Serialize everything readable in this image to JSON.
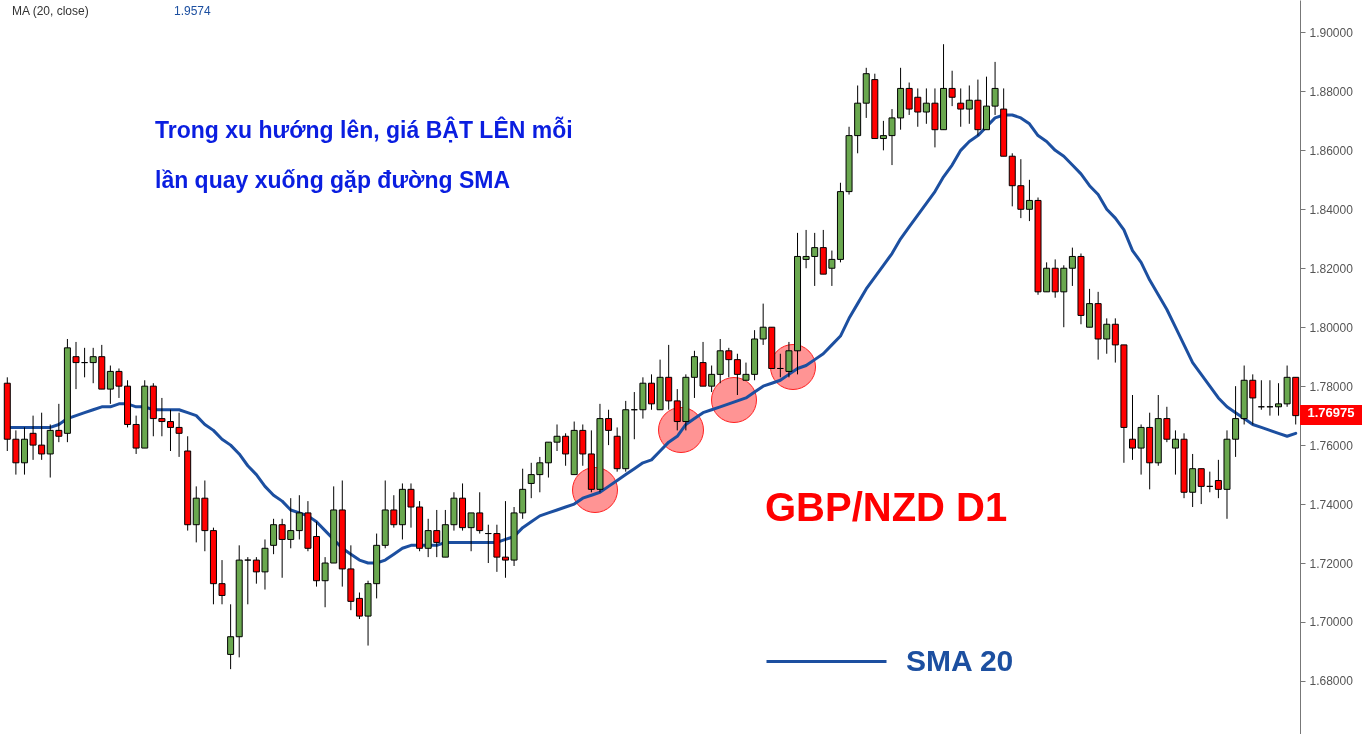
{
  "chart_data": {
    "type": "candlestick",
    "title": "Trong xu hướng lên, giá BẬT LÊN mỗi lần quay xuống gặp đường SMA",
    "annotations": [
      "MA (20, close)",
      "1.9574",
      "GBP/NZD D1",
      "1.76975"
    ],
    "categories": [
      null,
      null,
      null,
      null,
      null,
      null,
      null,
      null,
      null,
      null,
      null,
      null,
      null,
      null,
      null,
      null,
      null,
      null,
      null,
      null,
      null,
      null,
      null,
      null,
      null,
      null,
      null,
      null,
      null,
      null,
      null,
      null,
      null,
      null,
      null,
      null,
      null,
      null,
      null,
      null,
      null,
      null,
      null,
      null,
      null,
      null,
      null,
      null,
      null,
      null,
      null,
      null,
      null,
      null,
      null,
      null,
      null,
      null,
      null,
      null,
      null,
      null,
      null,
      null,
      null,
      null,
      null,
      null,
      null,
      null,
      null,
      null,
      null,
      null,
      null,
      null,
      null,
      null,
      null,
      null,
      null,
      null,
      null,
      null,
      null,
      null,
      null,
      null,
      null,
      null,
      null,
      null,
      null,
      null,
      null,
      null,
      null,
      null,
      null,
      null,
      null,
      null,
      null,
      null,
      null,
      null,
      null,
      null,
      null,
      null,
      null,
      null,
      null,
      null,
      null,
      null,
      null,
      null,
      null,
      null,
      null,
      null,
      null,
      null,
      null,
      null,
      null,
      null,
      null,
      null,
      null,
      null,
      null,
      null,
      null,
      null,
      null,
      null,
      null,
      null,
      null,
      null,
      null,
      null,
      null,
      null,
      null,
      null,
      null,
      null,
      null
    ],
    "ohlc": [
      [
        1.781,
        1.783,
        1.758,
        1.762
      ],
      [
        1.762,
        1.765,
        1.75,
        1.754
      ],
      [
        1.754,
        1.766,
        1.75,
        1.762
      ],
      [
        1.764,
        1.77,
        1.755,
        1.76
      ],
      [
        1.76,
        1.771,
        1.755,
        1.757
      ],
      [
        1.757,
        1.767,
        1.749,
        1.765
      ],
      [
        1.765,
        1.774,
        1.761,
        1.763
      ],
      [
        1.764,
        1.796,
        1.761,
        1.793
      ],
      [
        1.79,
        1.795,
        1.779,
        1.788
      ],
      [
        1.788,
        1.793,
        1.783,
        1.788
      ],
      [
        1.788,
        1.793,
        1.781,
        1.79
      ],
      [
        1.79,
        1.794,
        1.779,
        1.779
      ],
      [
        1.779,
        1.787,
        1.774,
        1.785
      ],
      [
        1.785,
        1.786,
        1.776,
        1.78
      ],
      [
        1.78,
        1.782,
        1.766,
        1.767
      ],
      [
        1.767,
        1.77,
        1.757,
        1.759
      ],
      [
        1.759,
        1.782,
        1.759,
        1.78
      ],
      [
        1.78,
        1.781,
        1.763,
        1.769
      ],
      [
        1.769,
        1.776,
        1.763,
        1.768
      ],
      [
        1.768,
        1.772,
        1.758,
        1.766
      ],
      [
        1.766,
        1.771,
        1.756,
        1.764
      ],
      [
        1.758,
        1.763,
        1.731,
        1.733
      ],
      [
        1.733,
        1.746,
        1.727,
        1.742
      ],
      [
        1.742,
        1.748,
        1.724,
        1.731
      ],
      [
        1.731,
        1.732,
        1.706,
        1.713
      ],
      [
        1.713,
        1.721,
        1.706,
        1.709
      ],
      [
        1.689,
        1.706,
        1.684,
        1.695
      ],
      [
        1.695,
        1.726,
        1.688,
        1.721
      ],
      [
        1.721,
        1.722,
        1.706,
        1.721
      ],
      [
        1.721,
        1.722,
        1.713,
        1.717
      ],
      [
        1.717,
        1.728,
        1.711,
        1.725
      ],
      [
        1.726,
        1.735,
        1.723,
        1.733
      ],
      [
        1.733,
        1.735,
        1.715,
        1.728
      ],
      [
        1.728,
        1.742,
        1.725,
        1.731
      ],
      [
        1.731,
        1.743,
        1.728,
        1.737
      ],
      [
        1.737,
        1.741,
        1.724,
        1.725
      ],
      [
        1.729,
        1.734,
        1.712,
        1.714
      ],
      [
        1.714,
        1.722,
        1.705,
        1.72
      ],
      [
        1.72,
        1.746,
        1.72,
        1.738
      ],
      [
        1.738,
        1.748,
        1.712,
        1.718
      ],
      [
        1.718,
        1.726,
        1.704,
        1.707
      ],
      [
        1.708,
        1.71,
        1.701,
        1.702
      ],
      [
        1.702,
        1.714,
        1.692,
        1.713
      ],
      [
        1.713,
        1.73,
        1.708,
        1.726
      ],
      [
        1.726,
        1.748,
        1.725,
        1.738
      ],
      [
        1.738,
        1.743,
        1.732,
        1.733
      ],
      [
        1.733,
        1.747,
        1.728,
        1.745
      ],
      [
        1.745,
        1.747,
        1.732,
        1.739
      ],
      [
        1.739,
        1.741,
        1.724,
        1.725
      ],
      [
        1.725,
        1.735,
        1.722,
        1.731
      ],
      [
        1.731,
        1.738,
        1.722,
        1.727
      ],
      [
        1.722,
        1.738,
        1.722,
        1.733
      ],
      [
        1.733,
        1.744,
        1.731,
        1.742
      ],
      [
        1.742,
        1.747,
        1.731,
        1.732
      ],
      [
        1.732,
        1.737,
        1.724,
        1.737
      ],
      [
        1.737,
        1.744,
        1.73,
        1.731
      ],
      [
        1.73,
        1.733,
        1.72,
        1.73
      ],
      [
        1.73,
        1.733,
        1.717,
        1.722
      ],
      [
        1.722,
        1.741,
        1.715,
        1.721
      ],
      [
        1.721,
        1.739,
        1.719,
        1.737
      ],
      [
        1.737,
        1.752,
        1.735,
        1.745
      ],
      [
        1.747,
        1.754,
        1.742,
        1.75
      ],
      [
        1.75,
        1.756,
        1.744,
        1.754
      ],
      [
        1.754,
        1.761,
        1.749,
        1.761
      ],
      [
        1.761,
        1.767,
        1.758,
        1.763
      ],
      [
        1.763,
        1.764,
        1.753,
        1.757
      ],
      [
        1.75,
        1.768,
        1.75,
        1.765
      ],
      [
        1.765,
        1.767,
        1.753,
        1.757
      ],
      [
        1.757,
        1.765,
        1.744,
        1.745
      ],
      [
        1.745,
        1.774,
        1.744,
        1.769
      ],
      [
        1.769,
        1.772,
        1.76,
        1.765
      ],
      [
        1.763,
        1.766,
        1.751,
        1.752
      ],
      [
        1.752,
        1.775,
        1.751,
        1.772
      ],
      [
        1.772,
        1.778,
        1.762,
        1.772
      ],
      [
        1.772,
        1.783,
        1.769,
        1.781
      ],
      [
        1.781,
        1.784,
        1.772,
        1.774
      ],
      [
        1.772,
        1.789,
        1.772,
        1.783
      ],
      [
        1.783,
        1.794,
        1.772,
        1.775
      ],
      [
        1.775,
        1.779,
        1.765,
        1.768
      ],
      [
        1.768,
        1.784,
        1.765,
        1.783
      ],
      [
        1.783,
        1.792,
        1.776,
        1.79
      ],
      [
        1.788,
        1.795,
        1.78,
        1.78
      ],
      [
        1.78,
        1.787,
        1.778,
        1.784
      ],
      [
        1.784,
        1.796,
        1.781,
        1.792
      ],
      [
        1.792,
        1.793,
        1.783,
        1.789
      ],
      [
        1.789,
        1.791,
        1.777,
        1.784
      ],
      [
        1.782,
        1.788,
        1.782,
        1.784
      ],
      [
        1.784,
        1.799,
        1.782,
        1.796
      ],
      [
        1.796,
        1.808,
        1.794,
        1.8
      ],
      [
        1.8,
        1.8,
        1.786,
        1.786
      ],
      [
        1.786,
        1.791,
        1.783,
        1.786
      ],
      [
        1.785,
        1.795,
        1.783,
        1.792
      ],
      [
        1.792,
        1.832,
        1.784,
        1.824
      ],
      [
        1.823,
        1.833,
        1.82,
        1.824
      ],
      [
        1.824,
        1.832,
        1.814,
        1.827
      ],
      [
        1.827,
        1.833,
        1.818,
        1.818
      ],
      [
        1.82,
        1.826,
        1.814,
        1.823
      ],
      [
        1.823,
        1.849,
        1.822,
        1.846
      ],
      [
        1.846,
        1.868,
        1.845,
        1.865
      ],
      [
        1.865,
        1.882,
        1.859,
        1.876
      ],
      [
        1.876,
        1.888,
        1.871,
        1.886
      ],
      [
        1.884,
        1.886,
        1.864,
        1.864
      ],
      [
        1.864,
        1.87,
        1.86,
        1.865
      ],
      [
        1.865,
        1.874,
        1.855,
        1.871
      ],
      [
        1.871,
        1.888,
        1.867,
        1.881
      ],
      [
        1.881,
        1.883,
        1.872,
        1.874
      ],
      [
        1.878,
        1.881,
        1.868,
        1.873
      ],
      [
        1.873,
        1.881,
        1.869,
        1.876
      ],
      [
        1.876,
        1.881,
        1.861,
        1.867
      ],
      [
        1.867,
        1.896,
        1.867,
        1.881
      ],
      [
        1.881,
        1.887,
        1.875,
        1.878
      ],
      [
        1.876,
        1.881,
        1.868,
        1.874
      ],
      [
        1.874,
        1.882,
        1.869,
        1.877
      ],
      [
        1.877,
        1.884,
        1.865,
        1.867
      ],
      [
        1.867,
        1.885,
        1.867,
        1.875
      ],
      [
        1.875,
        1.89,
        1.872,
        1.881
      ],
      [
        1.874,
        1.881,
        1.858,
        1.858
      ],
      [
        1.858,
        1.859,
        1.841,
        1.848
      ],
      [
        1.848,
        1.857,
        1.837,
        1.84
      ],
      [
        1.84,
        1.85,
        1.836,
        1.843
      ],
      [
        1.843,
        1.844,
        1.811,
        1.812
      ],
      [
        1.812,
        1.822,
        1.812,
        1.82
      ],
      [
        1.82,
        1.823,
        1.81,
        1.812
      ],
      [
        1.812,
        1.821,
        1.8,
        1.82
      ],
      [
        1.82,
        1.827,
        1.814,
        1.824
      ],
      [
        1.824,
        1.825,
        1.801,
        1.804
      ],
      [
        1.8,
        1.813,
        1.8,
        1.808
      ],
      [
        1.808,
        1.812,
        1.789,
        1.796
      ],
      [
        1.796,
        1.803,
        1.791,
        1.801
      ],
      [
        1.801,
        1.803,
        1.788,
        1.794
      ],
      [
        1.794,
        1.794,
        1.754,
        1.766
      ],
      [
        1.762,
        1.777,
        1.755,
        1.759
      ],
      [
        1.759,
        1.767,
        1.75,
        1.766
      ],
      [
        1.766,
        1.771,
        1.745,
        1.754
      ],
      [
        1.754,
        1.777,
        1.753,
        1.769
      ],
      [
        1.769,
        1.773,
        1.761,
        1.762
      ],
      [
        1.759,
        1.765,
        1.75,
        1.762
      ],
      [
        1.762,
        1.764,
        1.742,
        1.744
      ],
      [
        1.744,
        1.757,
        1.739,
        1.752
      ],
      [
        1.752,
        1.752,
        1.74,
        1.746
      ],
      [
        1.746,
        1.751,
        1.744,
        1.746
      ],
      [
        1.748,
        1.755,
        1.742,
        1.745
      ],
      [
        1.745,
        1.765,
        1.735,
        1.762
      ],
      [
        1.762,
        1.78,
        1.756,
        1.769
      ],
      [
        1.769,
        1.787,
        1.767,
        1.782
      ],
      [
        1.782,
        1.784,
        1.767,
        1.776
      ],
      [
        1.773,
        1.782,
        1.772,
        1.773
      ],
      [
        1.773,
        1.782,
        1.77,
        1.773
      ],
      [
        1.773,
        1.781,
        1.77,
        1.774
      ],
      [
        1.774,
        1.787,
        1.773,
        1.783
      ],
      [
        1.783,
        1.783,
        1.767,
        1.77
      ]
    ],
    "colors": [
      "#ff0000",
      "#ff0000",
      "#6aa84f",
      "#ff0000",
      "#ff0000",
      "#6aa84f",
      "#ff0000",
      "#6aa84f",
      "#ff0000",
      "#000000",
      "#6aa84f",
      "#ff0000",
      "#6aa84f",
      "#ff0000",
      "#ff0000",
      "#ff0000",
      "#6aa84f",
      "#ff0000",
      "#ff0000",
      "#ff0000",
      "#ff0000",
      "#ff0000",
      "#6aa84f",
      "#ff0000",
      "#ff0000",
      "#ff0000",
      "#6aa84f",
      "#6aa84f",
      "#000000",
      "#ff0000",
      "#6aa84f",
      "#6aa84f",
      "#ff0000",
      "#6aa84f",
      "#6aa84f",
      "#ff0000",
      "#ff0000",
      "#6aa84f",
      "#6aa84f",
      "#ff0000",
      "#ff0000",
      "#ff0000",
      "#6aa84f",
      "#6aa84f",
      "#6aa84f",
      "#ff0000",
      "#6aa84f",
      "#ff0000",
      "#ff0000",
      "#6aa84f",
      "#ff0000",
      "#6aa84f",
      "#6aa84f",
      "#ff0000",
      "#6aa84f",
      "#ff0000",
      "#000000",
      "#ff0000",
      "#ff0000",
      "#6aa84f",
      "#6aa84f",
      "#6aa84f",
      "#6aa84f",
      "#6aa84f",
      "#6aa84f",
      "#ff0000",
      "#6aa84f",
      "#ff0000",
      "#ff0000",
      "#6aa84f",
      "#ff0000",
      "#ff0000",
      "#6aa84f",
      "#000000",
      "#6aa84f",
      "#ff0000",
      "#6aa84f",
      "#ff0000",
      "#ff0000",
      "#6aa84f",
      "#6aa84f",
      "#ff0000",
      "#6aa84f",
      "#6aa84f",
      "#ff0000",
      "#ff0000",
      "#6aa84f",
      "#6aa84f",
      "#6aa84f",
      "#ff0000",
      "#000000",
      "#6aa84f",
      "#6aa84f",
      "#6aa84f",
      "#6aa84f",
      "#ff0000",
      "#6aa84f",
      "#6aa84f",
      "#6aa84f",
      "#6aa84f",
      "#6aa84f",
      "#ff0000",
      "#6aa84f",
      "#6aa84f",
      "#6aa84f",
      "#ff0000",
      "#ff0000",
      "#6aa84f",
      "#ff0000",
      "#6aa84f",
      "#ff0000",
      "#ff0000",
      "#6aa84f",
      "#ff0000",
      "#6aa84f",
      "#6aa84f",
      "#ff0000",
      "#ff0000",
      "#ff0000",
      "#6aa84f",
      "#ff0000",
      "#6aa84f",
      "#ff0000",
      "#6aa84f",
      "#6aa84f",
      "#ff0000",
      "#6aa84f",
      "#ff0000",
      "#6aa84f",
      "#ff0000",
      "#ff0000",
      "#ff0000",
      "#6aa84f",
      "#ff0000",
      "#6aa84f",
      "#ff0000",
      "#6aa84f",
      "#ff0000",
      "#6aa84f",
      "#ff0000",
      "#000000",
      "#ff0000",
      "#6aa84f",
      "#6aa84f",
      "#6aa84f",
      "#ff0000",
      "#000000",
      "#000000",
      "#6aa84f",
      "#6aa84f",
      "#ff0000"
    ],
    "series": [
      {
        "type": "line",
        "name": "SMA 20",
        "color": "#1c4fa0",
        "values": [
          1.766,
          1.766,
          1.766,
          1.766,
          1.766,
          1.766,
          1.767,
          1.769,
          1.77,
          1.771,
          1.772,
          1.773,
          1.773,
          1.774,
          1.774,
          1.773,
          1.773,
          1.772,
          1.772,
          1.772,
          1.772,
          1.771,
          1.77,
          1.767,
          1.765,
          1.762,
          1.76,
          1.757,
          1.753,
          1.75,
          1.746,
          1.743,
          1.741,
          1.738,
          1.737,
          1.736,
          1.734,
          1.731,
          1.728,
          1.725,
          1.723,
          1.721,
          1.72,
          1.72,
          1.721,
          1.723,
          1.725,
          1.726,
          1.726,
          1.726,
          1.726,
          1.727,
          1.727,
          1.727,
          1.727,
          1.727,
          1.727,
          1.727,
          1.728,
          1.729,
          1.732,
          1.734,
          1.736,
          1.737,
          1.738,
          1.739,
          1.74,
          1.742,
          1.743,
          1.744,
          1.746,
          1.748,
          1.75,
          1.752,
          1.754,
          1.755,
          1.758,
          1.761,
          1.763,
          1.767,
          1.769,
          1.771,
          1.772,
          1.773,
          1.774,
          1.775,
          1.776,
          1.778,
          1.78,
          1.781,
          1.782,
          1.784,
          1.786,
          1.787,
          1.789,
          1.791,
          1.794,
          1.797,
          1.803,
          1.808,
          1.813,
          1.817,
          1.821,
          1.825,
          1.83,
          1.834,
          1.838,
          1.842,
          1.846,
          1.851,
          1.855,
          1.86,
          1.863,
          1.865,
          1.868,
          1.871,
          1.872,
          1.872,
          1.871,
          1.869,
          1.865,
          1.863,
          1.86,
          1.858,
          1.855,
          1.852,
          1.848,
          1.845,
          1.84,
          1.837,
          1.833,
          1.826,
          1.822,
          1.816,
          1.811,
          1.806,
          1.8,
          1.794,
          1.788,
          1.784,
          1.78,
          1.776,
          1.773,
          1.771,
          1.769,
          1.767,
          1.766,
          1.765,
          1.764,
          1.763,
          1.764
        ]
      }
    ],
    "ylim": [
      1.662,
      1.911
    ],
    "yticks": [
      {
        "value": 1.68,
        "label": "1.68000"
      },
      {
        "value": 1.7,
        "label": "1.70000"
      },
      {
        "value": 1.72,
        "label": "1.72000"
      },
      {
        "value": 1.74,
        "label": "1.74000"
      },
      {
        "value": 1.76,
        "label": "1.76000"
      },
      {
        "value": 1.78,
        "label": "1.78000"
      },
      {
        "value": 1.8,
        "label": "1.80000"
      },
      {
        "value": 1.82,
        "label": "1.82000"
      },
      {
        "value": 1.84,
        "label": "1.84000"
      },
      {
        "value": 1.86,
        "label": "1.86000"
      },
      {
        "value": 1.88,
        "label": "1.88000"
      },
      {
        "value": 1.9,
        "label": "1.90000"
      }
    ],
    "tick_labels": "y",
    "legend": "bottom"
  }
}
